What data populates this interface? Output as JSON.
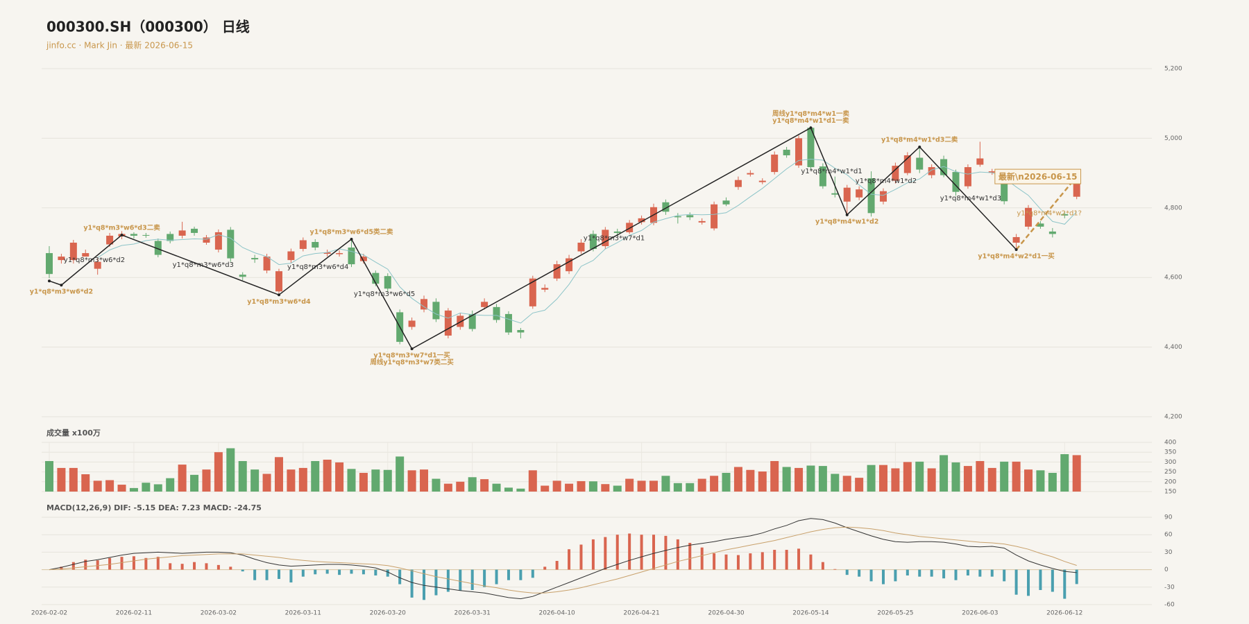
{
  "chart_data": [
    {
      "type": "candlestick",
      "title": "000300.SH（000300） 日线",
      "subtitle": "jinfo.cc · Mark Jin · 最新 2026-06-15",
      "categories": [
        "2026-02-02",
        null,
        null,
        null,
        null,
        null,
        null,
        "2026-02-11",
        null,
        null,
        null,
        null,
        null,
        null,
        "2026-03-02",
        null,
        null,
        null,
        null,
        null,
        null,
        "2026-03-11",
        null,
        null,
        null,
        null,
        null,
        null,
        "2026-03-20",
        null,
        null,
        null,
        null,
        null,
        null,
        "2026-03-31",
        null,
        null,
        null,
        null,
        null,
        null,
        "2026-04-10",
        null,
        null,
        null,
        null,
        null,
        null,
        "2026-04-21",
        null,
        null,
        null,
        null,
        null,
        null,
        "2026-04-30",
        null,
        null,
        null,
        null,
        null,
        null,
        "2026-05-14",
        null,
        null,
        null,
        null,
        null,
        null,
        "2026-05-25",
        null,
        null,
        null,
        null,
        null,
        null,
        "2026-06-03",
        null,
        null,
        null,
        null,
        null,
        null,
        "2026-06-12",
        null
      ],
      "open": [
        4670,
        4650,
        4650,
        4660,
        4625,
        4695,
        4718,
        4725,
        4722,
        4705,
        4725,
        4720,
        4740,
        4700,
        4680,
        4737,
        4608,
        4656,
        4620,
        4560,
        4650,
        4682,
        4702,
        4668,
        4667,
        4686,
        4647,
        4613,
        4604,
        4500,
        4458,
        4508,
        4530,
        4433,
        4458,
        4495,
        4515,
        4515,
        4495,
        4449,
        4517,
        4565,
        4597,
        4618,
        4675,
        4725,
        4690,
        4732,
        4730,
        4759,
        4757,
        4816,
        4776,
        4779,
        4758,
        4741,
        4821,
        4860,
        4896,
        4874,
        4903,
        4967,
        4922,
        5030,
        4919,
        4842,
        4818,
        4830,
        4885,
        4818,
        4878,
        4900,
        4944,
        4894,
        4940,
        4903,
        4862,
        4924,
        4901,
        4874,
        4700,
        4746,
        4755,
        4732,
        4782,
        4832
      ],
      "high": [
        4690,
        4668,
        4708,
        4680,
        4655,
        4728,
        4733,
        4730,
        4728,
        4712,
        4732,
        4760,
        4746,
        4722,
        4738,
        4745,
        4615,
        4665,
        4668,
        4625,
        4683,
        4715,
        4710,
        4680,
        4678,
        4712,
        4668,
        4620,
        4612,
        4508,
        4485,
        4548,
        4540,
        4512,
        4498,
        4505,
        4540,
        4524,
        4503,
        4455,
        4605,
        4580,
        4648,
        4665,
        4710,
        4735,
        4745,
        4740,
        4765,
        4778,
        4812,
        4824,
        4785,
        4787,
        4770,
        4818,
        4830,
        4890,
        4908,
        4885,
        4962,
        4975,
        5008,
        5035,
        4928,
        4890,
        4866,
        4862,
        4905,
        4856,
        4930,
        4960,
        4975,
        4925,
        4950,
        4910,
        4925,
        4990,
        4912,
        4882,
        4725,
        4808,
        4762,
        4742,
        4790,
        4902
      ],
      "low": [
        4598,
        4640,
        4640,
        4662,
        4608,
        4688,
        4710,
        4712,
        4714,
        4658,
        4698,
        4712,
        4720,
        4694,
        4672,
        4645,
        4592,
        4642,
        4612,
        4555,
        4642,
        4675,
        4678,
        4660,
        4660,
        4630,
        4640,
        4575,
        4560,
        4408,
        4450,
        4500,
        4472,
        4425,
        4450,
        4445,
        4508,
        4470,
        4435,
        4425,
        4510,
        4558,
        4590,
        4610,
        4668,
        4675,
        4682,
        4720,
        4725,
        4752,
        4750,
        4780,
        4755,
        4765,
        4752,
        4735,
        4805,
        4852,
        4890,
        4868,
        4896,
        4944,
        4915,
        4910,
        4855,
        4830,
        4780,
        4822,
        4775,
        4810,
        4870,
        4894,
        4900,
        4885,
        4888,
        4835,
        4855,
        4918,
        4895,
        4810,
        4680,
        4738,
        4740,
        4715,
        4770,
        4825
      ],
      "close": [
        4610,
        4660,
        4700,
        4670,
        4645,
        4720,
        4725,
        4720,
        4720,
        4665,
        4705,
        4735,
        4728,
        4715,
        4730,
        4655,
        4602,
        4652,
        4660,
        4618,
        4675,
        4707,
        4686,
        4672,
        4670,
        4638,
        4660,
        4582,
        4568,
        4415,
        4476,
        4538,
        4480,
        4505,
        4490,
        4452,
        4530,
        4478,
        4442,
        4442,
        4597,
        4570,
        4638,
        4655,
        4700,
        4682,
        4737,
        4728,
        4757,
        4770,
        4802,
        4789,
        4773,
        4773,
        4762,
        4810,
        4810,
        4880,
        4900,
        4878,
        4953,
        4951,
        5000,
        4917,
        4862,
        4838,
        4858,
        4853,
        4785,
        4848,
        4921,
        4951,
        4910,
        4917,
        4894,
        4846,
        4917,
        4942,
        4905,
        4819,
        4716,
        4800,
        4746,
        4725,
        4778,
        4894
      ],
      "ma": [
        null,
        null,
        null,
        null,
        4657,
        4679,
        4692,
        4696,
        4706,
        4710,
        4707,
        4709,
        4711,
        4710,
        4723,
        4713,
        4686,
        4671,
        4660,
        4637,
        4641,
        4662,
        4669,
        4672,
        4682,
        4675,
        4665,
        4644,
        4624,
        4573,
        4540,
        4516,
        4495,
        4483,
        4498,
        4493,
        4491,
        4491,
        4480,
        4469,
        4498,
        4506,
        4538,
        4580,
        4632,
        4649,
        4682,
        4700,
        4721,
        4735,
        4759,
        4769,
        4778,
        4781,
        4780,
        4781,
        4786,
        4807,
        4832,
        4856,
        4884,
        4912,
        4936,
        4940,
        4937,
        4914,
        4895,
        4866,
        4839,
        4836,
        4853,
        4872,
        4883,
        4909,
        4919,
        4904,
        4897,
        4903,
        4901,
        4886,
        4860,
        4836,
        4797,
        4761,
        4753,
        4789
      ],
      "up_color": "#d9654f",
      "down_color": "#62a96f",
      "ma_color": "#8cc4c8",
      "zigzag_color": "#222222",
      "signal_color": "#c8964b",
      "segment_color": "#333333",
      "pivots": [
        {
          "at": 0,
          "value": 4590
        },
        {
          "at": 1,
          "value": 4578,
          "label": [
            "y1*q8*m3*w6*d2"
          ]
        },
        {
          "at": 6,
          "value": 4722,
          "label": [
            "y1*q8*m3*w6*d3二卖"
          ],
          "segment": "y1*q8*m3*w6*d2"
        },
        {
          "at": 19,
          "value": 4550,
          "label": [
            "y1*q8*m3*w6*d4"
          ],
          "segment": "y1*q8*m3*w6*d3"
        },
        {
          "at": 25,
          "value": 4710,
          "label": [
            "y1*q8*m3*w6*d5类二卖"
          ],
          "segment": "y1*q8*m3*w6*d4"
        },
        {
          "at": 30,
          "value": 4395,
          "label": [
            "y1*q8*m3*w7*d1一买",
            "周线y1*q8*m3*w7类二买"
          ],
          "segment": "y1*q8*m3*w6*d5"
        },
        {
          "at": 63,
          "value": 5030,
          "label": [
            "周线y1*q8*m4*w1一卖",
            "y1*q8*m4*w1*d1一卖"
          ],
          "segment": "y1*q8*m3*w7*d1"
        },
        {
          "at": 66,
          "value": 4780,
          "label": [
            "y1*q8*m4*w1*d2"
          ],
          "segment": "y1*q8*m4*w1*d1"
        },
        {
          "at": 72,
          "value": 4975,
          "label": [
            "y1*q8*m4*w1*d3二卖"
          ],
          "segment": "y1*q8*m4*w1*d2"
        },
        {
          "at": 80,
          "value": 4680,
          "label": [
            "y1*q8*m4*w2*d1一买"
          ],
          "segment": "y1*q8*m4*w1*d3"
        },
        {
          "at": 85,
          "value": 4890,
          "label": [
            "最新\\n2026-06-15"
          ],
          "segment": "y1*q8*m4*w2*d1?",
          "pending": true
        }
      ],
      "ylim": [
        4200,
        5200
      ],
      "yticks": [
        {
          "value": 4200,
          "label": "4,200"
        },
        {
          "value": 4400,
          "label": "4,400"
        },
        {
          "value": 4600,
          "label": "4,600"
        },
        {
          "value": 4800,
          "label": "4,800"
        },
        {
          "value": 5000,
          "label": "5,000"
        },
        {
          "value": 5200,
          "label": "5,200"
        }
      ]
    },
    {
      "type": "volume",
      "title": "成交量 x100万",
      "values": [
        305,
        270,
        270,
        238,
        205,
        208,
        185,
        168,
        195,
        187,
        218,
        287,
        235,
        262,
        350,
        370,
        305,
        262,
        240,
        325,
        262,
        270,
        305,
        312,
        298,
        265,
        245,
        262,
        260,
        328,
        258,
        262,
        215,
        190,
        200,
        223,
        213,
        190,
        170,
        165,
        258,
        180,
        205,
        190,
        203,
        202,
        188,
        180,
        215,
        205,
        205,
        230,
        193,
        193,
        215,
        230,
        245,
        275,
        260,
        252,
        305,
        275,
        270,
        282,
        280,
        240,
        230,
        220,
        285,
        285,
        268,
        300,
        302,
        268,
        335,
        298,
        280,
        305,
        270,
        302,
        302,
        262,
        258,
        245,
        340,
        335
      ],
      "ylim": [
        150,
        400
      ],
      "yticks": [
        150,
        200,
        250,
        300,
        350,
        400
      ]
    },
    {
      "type": "macd",
      "title": "MACD(12,26,9) DIF: -5.15 DEA: 7.23 MACD: -24.75",
      "histogram": [
        0,
        5,
        13,
        17,
        16,
        20,
        22,
        23,
        20,
        22,
        11,
        10,
        13,
        11,
        8,
        5,
        -3,
        -18,
        -18,
        -16,
        -22,
        -12,
        -8,
        -7,
        -9,
        -7,
        -8,
        -10,
        -12,
        -25,
        -48,
        -52,
        -44,
        -38,
        -36,
        -35,
        -30,
        -25,
        -18,
        -18,
        -14,
        5,
        15,
        35,
        43,
        52,
        56,
        60,
        62,
        60,
        60,
        58,
        52,
        46,
        38,
        28,
        26,
        25,
        28,
        30,
        34,
        34,
        36,
        26,
        13,
        1,
        -9,
        -12,
        -20,
        -25,
        -20,
        -10,
        -12,
        -12,
        -15,
        -18,
        -10,
        -12,
        -12,
        -20,
        -43,
        -45,
        -35,
        -38,
        -50,
        -24.75
      ],
      "dif": [
        0,
        4,
        9,
        14,
        17,
        21,
        25,
        28,
        29,
        30,
        29,
        28,
        29,
        30,
        30,
        29,
        25,
        18,
        12,
        8,
        6,
        7,
        8,
        9,
        9,
        8,
        6,
        3,
        -4,
        -14,
        -22,
        -27,
        -30,
        -33,
        -36,
        -38,
        -40,
        -44,
        -48,
        -50,
        -46,
        -38,
        -30,
        -22,
        -14,
        -6,
        2,
        9,
        16,
        22,
        28,
        33,
        38,
        42,
        45,
        48,
        52,
        55,
        58,
        63,
        70,
        76,
        84,
        88,
        86,
        80,
        72,
        65,
        58,
        52,
        48,
        47,
        48,
        48,
        47,
        44,
        40,
        39,
        40,
        37,
        25,
        15,
        8,
        2,
        -3,
        -5.15
      ],
      "dea": [
        0,
        1,
        3,
        5,
        7,
        9,
        12,
        15,
        18,
        20,
        22,
        24,
        25,
        26,
        27,
        27,
        27,
        25,
        23,
        21,
        18,
        16,
        14,
        13,
        12,
        11,
        10,
        9,
        7,
        3,
        -2,
        -7,
        -12,
        -16,
        -20,
        -24,
        -28,
        -31,
        -35,
        -38,
        -40,
        -40,
        -38,
        -35,
        -31,
        -26,
        -21,
        -16,
        -10,
        -4,
        2,
        8,
        14,
        19,
        24,
        29,
        34,
        38,
        42,
        46,
        50,
        55,
        60,
        65,
        69,
        72,
        73,
        72,
        70,
        67,
        63,
        60,
        57,
        55,
        53,
        51,
        49,
        47,
        46,
        44,
        40,
        35,
        28,
        22,
        14,
        7.23
      ],
      "pos_color": "#d9654f",
      "neg_color": "#4a9faf",
      "dif_color": "#333333",
      "dea_color": "#c8a06a",
      "ylim": [
        -60,
        90
      ],
      "yticks": [
        -60,
        -30,
        0,
        30,
        60,
        90
      ]
    }
  ]
}
